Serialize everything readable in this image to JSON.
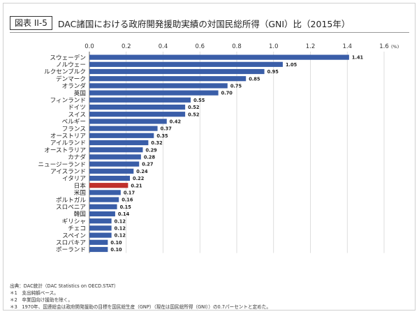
{
  "figure": {
    "label": "図表 II-5",
    "title": "DAC諸国における政府開発援助実績の対国民総所得（GNI）比（2015年）"
  },
  "chart_data": {
    "type": "bar",
    "orientation": "horizontal",
    "categories": [
      "スウェーデン",
      "ノルウェー",
      "ルクセンブルク",
      "デンマーク",
      "オランダ",
      "英国",
      "フィンランド",
      "ドイツ",
      "スイス",
      "ベルギー",
      "フランス",
      "オーストリア",
      "アイルランド",
      "オーストラリア",
      "カナダ",
      "ニュージーランド",
      "アイスランド",
      "イタリア",
      "日本",
      "米国",
      "ポルトガル",
      "スロベニア",
      "韓国",
      "ギリシャ",
      "チェコ",
      "スペイン",
      "スロバキア",
      "ポーランド"
    ],
    "values": [
      1.41,
      1.05,
      0.95,
      0.85,
      0.75,
      0.7,
      0.55,
      0.52,
      0.52,
      0.42,
      0.37,
      0.35,
      0.32,
      0.29,
      0.28,
      0.27,
      0.24,
      0.22,
      0.21,
      0.17,
      0.16,
      0.15,
      0.14,
      0.12,
      0.12,
      0.12,
      0.1,
      0.1
    ],
    "data_labels": [
      "1.41",
      "1.05",
      "0.95",
      "0.85",
      "0.75",
      "0.70",
      "0.55",
      "0.52",
      "0.52",
      "0.42",
      "0.37",
      "0.35",
      "0.32",
      "0.29",
      "0.28",
      "0.27",
      "0.24",
      "0.22",
      "0.21",
      "0.17",
      "0.16",
      "0.15",
      "0.14",
      "0.12",
      "0.12",
      "0.12",
      "0.10",
      "0.10"
    ],
    "highlight_category": "日本",
    "xlim": [
      0,
      1.6
    ],
    "x_ticks": [
      "0.0",
      "0.2",
      "0.4",
      "0.6",
      "0.8",
      "1.0",
      "1.2",
      "1.4",
      "1.6"
    ],
    "x_unit": "(%)",
    "x_axis_position": "top",
    "grid": true,
    "legend": "none",
    "colors": {
      "bar": "#3a5ea8",
      "highlight": "#c0302c",
      "grid": "#d0d0d0",
      "axis": "#555555"
    }
  },
  "notes": [
    "出典：DAC統計（DAC Statistics on OECD.STAT）",
    "＊1　支出純額ベース。",
    "＊2　卒業国向け援助を除く。",
    "＊3　1970年、国連総会は政府開発援助の目標を国民総生産（GNP）（現在は国民総所得（GNI））の0.7パーセントと定めた。"
  ]
}
